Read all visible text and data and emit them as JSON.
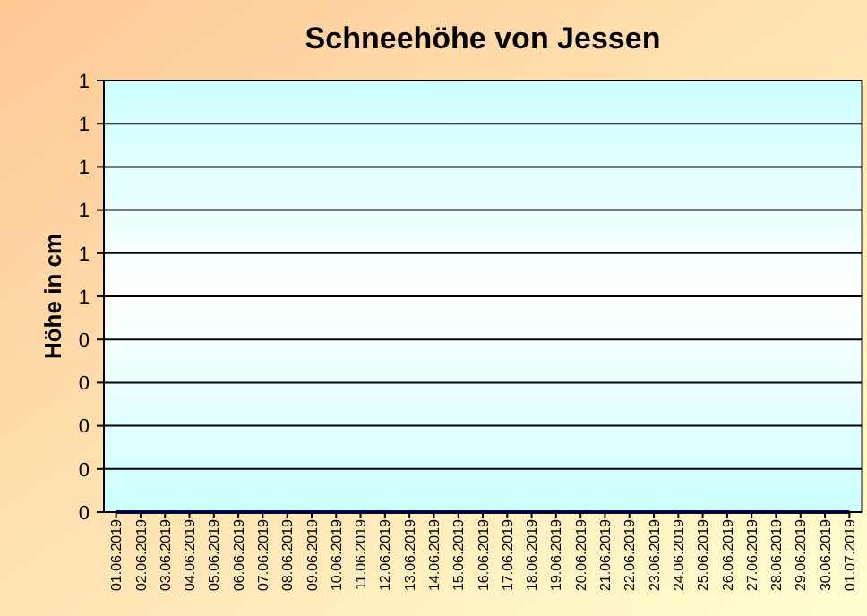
{
  "chart_data": {
    "type": "line",
    "title": "Schneehöhe von Jessen",
    "ylabel": "Höhe in cm",
    "categories": [
      "01.06.2019",
      "02.06.2019",
      "03.06.2019",
      "04.06.2019",
      "05.06.2019",
      "06.06.2019",
      "07.06.2019",
      "08.06.2019",
      "09.06.2019",
      "10.06.2019",
      "11.06.2019",
      "12.06.2019",
      "13.06.2019",
      "14.06.2019",
      "15.06.2019",
      "16.06.2019",
      "17.06.2019",
      "18.06.2019",
      "19.06.2019",
      "20.06.2019",
      "21.06.2019",
      "22.06.2019",
      "23.06.2019",
      "24.06.2019",
      "25.06.2019",
      "26.06.2019",
      "27.06.2019",
      "28.06.2019",
      "29.06.2019",
      "30.06.2019",
      "01.07.2019"
    ],
    "series": [
      {
        "color": "#000080",
        "values": [
          0,
          0,
          0,
          0,
          0,
          0,
          0,
          0,
          0,
          0,
          0,
          0,
          0,
          0,
          0,
          0,
          0,
          0,
          0,
          0,
          0,
          0,
          0,
          0,
          0,
          0,
          0,
          0,
          0,
          0,
          0
        ]
      }
    ],
    "ylim": [
      0,
      1
    ],
    "yticks": [
      {
        "value": 0,
        "label": "0"
      },
      {
        "value": 0.1,
        "label": "0"
      },
      {
        "value": 0.2,
        "label": "0"
      },
      {
        "value": 0.3,
        "label": "0"
      },
      {
        "value": 0.4,
        "label": "0"
      },
      {
        "value": 0.5,
        "label": "1"
      },
      {
        "value": 0.6,
        "label": "1"
      },
      {
        "value": 0.7,
        "label": "1"
      },
      {
        "value": 0.8,
        "label": "1"
      },
      {
        "value": 0.9,
        "label": "1"
      },
      {
        "value": 1,
        "label": "1"
      }
    ],
    "grid": "y",
    "marker": "none",
    "line_style": "solid"
  }
}
